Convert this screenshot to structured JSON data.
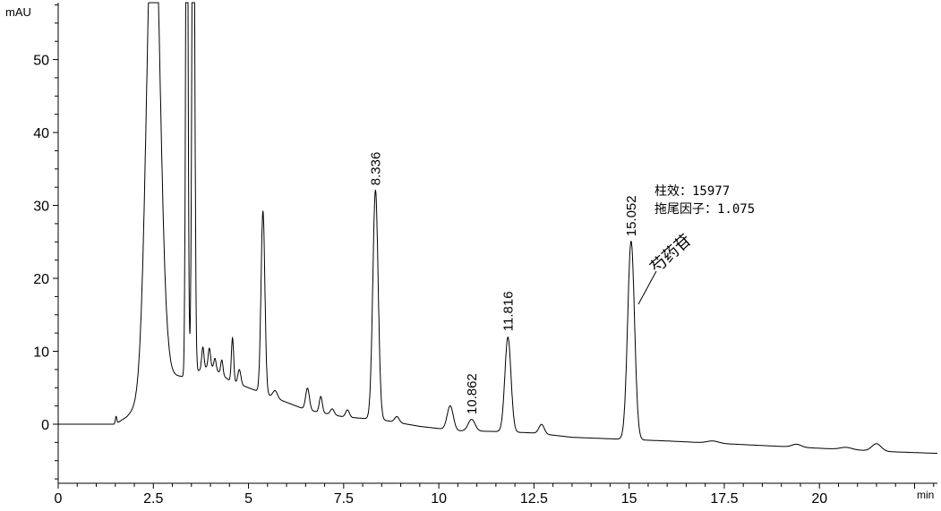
{
  "chart_data": {
    "type": "line",
    "title": "",
    "xlabel": "min",
    "ylabel": "mAU",
    "xlim": [
      0,
      23.1
    ],
    "ylim": [
      -8.1,
      57.8
    ],
    "x_ticks": [
      0,
      2.5,
      5,
      7.5,
      10,
      12.5,
      15,
      17.5,
      20
    ],
    "x_tick_labels": [
      "0",
      "2.5",
      "5",
      "7.5",
      "10",
      "12.5",
      "15",
      "17.5",
      "20"
    ],
    "y_ticks": [
      0,
      10,
      20,
      30,
      40,
      50
    ],
    "y_tick_labels": [
      "0",
      "10",
      "20",
      "30",
      "40",
      "50"
    ],
    "grid": false,
    "line_color": "#000000",
    "baseline": [
      [
        0,
        0
      ],
      [
        1.5,
        0
      ],
      [
        1.8,
        1
      ],
      [
        2.9,
        6.8
      ],
      [
        3.3,
        6.5
      ],
      [
        4.0,
        8
      ],
      [
        4.5,
        6
      ],
      [
        5.0,
        5
      ],
      [
        5.6,
        3.8
      ],
      [
        6.5,
        2
      ],
      [
        7.5,
        1
      ],
      [
        8.5,
        0.6
      ],
      [
        9.5,
        -0.3
      ],
      [
        10.5,
        -0.9
      ],
      [
        11.5,
        -1
      ],
      [
        12.5,
        -1.2
      ],
      [
        13.5,
        -1.8
      ],
      [
        14.5,
        -2
      ],
      [
        16,
        -2.3
      ],
      [
        18,
        -2.8
      ],
      [
        20,
        -3.3
      ],
      [
        22,
        -3.8
      ],
      [
        23.1,
        -4
      ]
    ],
    "peaks": [
      {
        "rt": 1.52,
        "height": 1.0,
        "width": 0.02
      },
      {
        "rt": 2.5,
        "height": 72,
        "width": 0.17
      },
      {
        "rt": 3.38,
        "height": 85,
        "width": 0.03
      },
      {
        "rt": 3.55,
        "height": 85,
        "width": 0.035
      },
      {
        "rt": 3.8,
        "height": 3,
        "width": 0.03
      },
      {
        "rt": 3.97,
        "height": 2.5,
        "width": 0.03
      },
      {
        "rt": 4.12,
        "height": 1.5,
        "width": 0.03
      },
      {
        "rt": 4.3,
        "height": 2,
        "width": 0.03
      },
      {
        "rt": 4.58,
        "height": 6,
        "width": 0.03
      },
      {
        "rt": 4.76,
        "height": 2,
        "width": 0.04
      },
      {
        "rt": 5.38,
        "height": 25,
        "width": 0.05
      },
      {
        "rt": 5.7,
        "height": 1,
        "width": 0.06
      },
      {
        "rt": 6.55,
        "height": 3,
        "width": 0.05
      },
      {
        "rt": 6.9,
        "height": 2.2,
        "width": 0.04
      },
      {
        "rt": 7.2,
        "height": 0.8,
        "width": 0.05
      },
      {
        "rt": 7.6,
        "height": 1,
        "width": 0.05
      },
      {
        "rt": 8.336,
        "height": 31.4,
        "width": 0.07
      },
      {
        "rt": 8.9,
        "height": 0.8,
        "width": 0.06
      },
      {
        "rt": 10.3,
        "height": 3.3,
        "width": 0.08
      },
      {
        "rt": 10.862,
        "height": 1.6,
        "width": 0.09
      },
      {
        "rt": 11.816,
        "height": 13,
        "width": 0.08
      },
      {
        "rt": 12.7,
        "height": 1.3,
        "width": 0.07
      },
      {
        "rt": 15.052,
        "height": 27.2,
        "width": 0.09
      },
      {
        "rt": 17.2,
        "height": 0.3,
        "width": 0.15
      },
      {
        "rt": 19.4,
        "height": 0.4,
        "width": 0.12
      },
      {
        "rt": 20.7,
        "height": 0.3,
        "width": 0.15
      },
      {
        "rt": 21.5,
        "height": 1.0,
        "width": 0.12
      }
    ],
    "peak_labels": [
      {
        "rt": 8.336,
        "label": "8.336",
        "y": 32
      },
      {
        "rt": 10.862,
        "label": "10.862",
        "y": 0.6
      },
      {
        "rt": 11.816,
        "label": "11.816",
        "y": 12
      },
      {
        "rt": 15.052,
        "label": "15.052",
        "y": 25
      }
    ],
    "annotations": {
      "compound_name": "芍药苷",
      "column_efficiency": "柱效：15977",
      "tailing_factor": "拖尾因子：1.075"
    }
  }
}
